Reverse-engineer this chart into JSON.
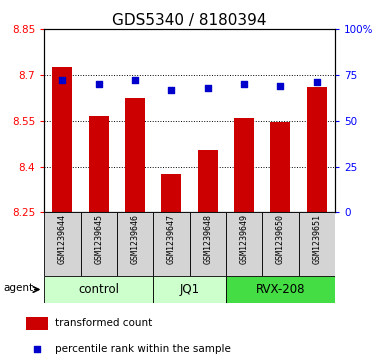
{
  "title": "GDS5340 / 8180394",
  "samples": [
    "GSM1239644",
    "GSM1239645",
    "GSM1239646",
    "GSM1239647",
    "GSM1239648",
    "GSM1239649",
    "GSM1239650",
    "GSM1239651"
  ],
  "bar_values": [
    8.725,
    8.565,
    8.625,
    8.375,
    8.455,
    8.56,
    8.545,
    8.66
  ],
  "percentile_values": [
    72,
    70,
    72,
    67,
    68,
    70,
    69,
    71
  ],
  "bar_color": "#cc0000",
  "dot_color": "#0000cc",
  "ylim_left": [
    8.25,
    8.85
  ],
  "ylim_right": [
    0,
    100
  ],
  "yticks_left": [
    8.25,
    8.4,
    8.55,
    8.7,
    8.85
  ],
  "yticks_right": [
    0,
    25,
    50,
    75,
    100
  ],
  "ytick_labels_right": [
    "0",
    "25",
    "50",
    "75",
    "100%"
  ],
  "groups": [
    {
      "label": "control",
      "start": 0,
      "end": 3,
      "color": "#ccffcc"
    },
    {
      "label": "JQ1",
      "start": 3,
      "end": 5,
      "color": "#ccffcc"
    },
    {
      "label": "RVX-208",
      "start": 5,
      "end": 8,
      "color": "#44dd44"
    }
  ],
  "agent_label": "agent",
  "legend_bar_label": "transformed count",
  "legend_dot_label": "percentile rank within the sample",
  "bar_bottom": 8.25,
  "title_fontsize": 11,
  "tick_fontsize": 7.5,
  "sample_fontsize": 6,
  "group_label_fontsize": 8.5,
  "legend_fontsize": 7.5
}
